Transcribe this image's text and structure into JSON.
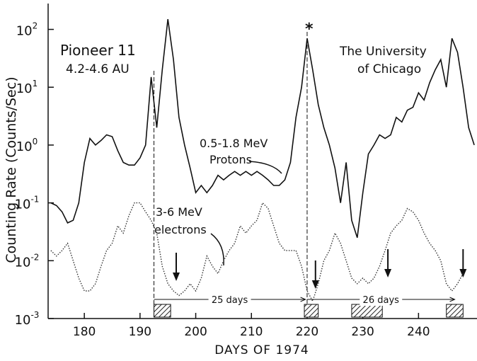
{
  "chart_data": {
    "type": "line",
    "ylabel": "Counting Rate (Counts/Sec)",
    "xlabel": "DAYS OF 1974",
    "annotations": [
      "Pioneer 11",
      "4.2-4.6 AU",
      "The University",
      "of Chicago",
      "0.5-1.8 MeV",
      "Protons",
      "3-6 MeV",
      "electrons",
      "*"
    ],
    "log_y": true,
    "xlim": [
      173.5,
      250.5
    ],
    "ylim": [
      0.001,
      280
    ],
    "xticks": [
      180,
      190,
      200,
      210,
      220,
      230,
      240
    ],
    "yticks": [
      {
        "value": 0.001,
        "label": "10",
        "exponent": "-3"
      },
      {
        "value": 0.01,
        "label": "10",
        "exponent": "-2"
      },
      {
        "value": 0.1,
        "label": "10",
        "exponent": "-1"
      },
      {
        "value": 1,
        "label": "10",
        "exponent": "0"
      },
      {
        "value": 10,
        "label": "10",
        "exponent": "1"
      },
      {
        "value": 100,
        "label": "10",
        "exponent": "2"
      }
    ],
    "x": [
      174,
      175,
      176,
      177,
      178,
      179,
      180,
      181,
      182,
      183,
      184,
      185,
      186,
      187,
      188,
      189,
      190,
      191,
      192,
      193,
      194,
      195,
      196,
      197,
      198,
      199,
      200,
      201,
      202,
      203,
      204,
      205,
      206,
      207,
      208,
      209,
      210,
      211,
      212,
      213,
      214,
      215,
      216,
      217,
      218,
      219,
      220,
      221,
      222,
      223,
      224,
      225,
      226,
      227,
      228,
      229,
      230,
      231,
      232,
      233,
      234,
      235,
      236,
      237,
      238,
      239,
      240,
      241,
      242,
      243,
      244,
      245,
      246,
      247,
      248,
      249,
      250
    ],
    "series": [
      {
        "name": "0.5-1.8 MeV Protons",
        "color": "#111111",
        "style": "solid",
        "values": [
          0.1,
          0.09,
          0.07,
          0.045,
          0.05,
          0.1,
          0.5,
          1.3,
          1.0,
          1.2,
          1.5,
          1.4,
          0.8,
          0.5,
          0.45,
          0.45,
          0.6,
          1.0,
          15,
          2,
          20,
          150,
          30,
          3,
          1,
          0.4,
          0.15,
          0.2,
          0.15,
          0.2,
          0.3,
          0.25,
          0.3,
          0.35,
          0.3,
          0.35,
          0.3,
          0.35,
          0.3,
          0.25,
          0.2,
          0.2,
          0.25,
          0.5,
          3,
          10,
          70,
          20,
          5,
          2,
          1,
          0.4,
          0.1,
          0.5,
          0.05,
          0.025,
          0.15,
          0.7,
          1,
          1.5,
          1.3,
          1.5,
          3,
          2.5,
          4,
          4.5,
          8,
          6,
          12,
          20,
          30,
          10,
          70,
          40,
          10,
          2,
          1
        ]
      },
      {
        "name": "3-6 MeV electrons",
        "color": "#333333",
        "style": "dotted",
        "values": [
          0.015,
          0.012,
          0.015,
          0.02,
          0.01,
          0.005,
          0.003,
          0.003,
          0.004,
          0.008,
          0.015,
          0.02,
          0.04,
          0.03,
          0.06,
          0.1,
          0.1,
          0.07,
          0.05,
          0.03,
          0.008,
          0.004,
          0.003,
          0.0025,
          0.003,
          0.004,
          0.003,
          0.005,
          0.012,
          0.008,
          0.006,
          0.01,
          0.015,
          0.02,
          0.04,
          0.03,
          0.04,
          0.05,
          0.1,
          0.08,
          0.04,
          0.02,
          0.015,
          0.015,
          0.015,
          0.008,
          0.003,
          0.002,
          0.004,
          0.01,
          0.015,
          0.03,
          0.02,
          0.01,
          0.005,
          0.004,
          0.005,
          0.004,
          0.005,
          0.008,
          0.015,
          0.03,
          0.04,
          0.05,
          0.08,
          0.07,
          0.05,
          0.03,
          0.02,
          0.015,
          0.01,
          0.004,
          0.003,
          0.004,
          0.006,
          null,
          null
        ]
      }
    ],
    "markers": [
      192.5,
      220
    ],
    "arrows": [
      196.5,
      221.5,
      234.5,
      248
    ],
    "shaded_intervals": [
      [
        192.5,
        195.5
      ],
      [
        219.5,
        222
      ],
      [
        228,
        233.5
      ],
      [
        245,
        248
      ]
    ],
    "spans": [
      {
        "label": "25 days",
        "start": 192.5,
        "end": 219.7
      },
      {
        "label": "26 days",
        "start": 220,
        "end": 246.5
      }
    ]
  }
}
